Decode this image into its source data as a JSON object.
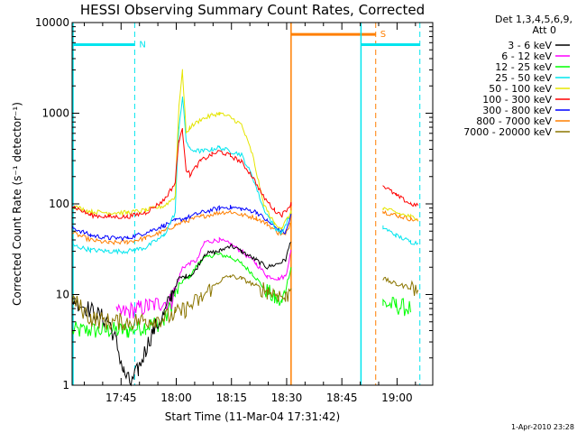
{
  "chart_data": {
    "type": "line",
    "title": "HESSI Observing Summary Count Rates, Corrected",
    "xlabel": "Start Time (11-Mar-04 17:31:42)",
    "ylabel": "Corrected Count Rate (s⁻¹ detector⁻¹)",
    "y_scale": "log",
    "ylim": [
      1,
      10000
    ],
    "y_ticks": [
      1,
      10,
      100,
      1000,
      10000
    ],
    "y_tick_labels": [
      "1",
      "10",
      "100",
      "1000",
      "10000"
    ],
    "x_unit": "minutes since 17:31:42",
    "xlim": [
      0,
      98
    ],
    "x_ticks": [
      13.3,
      28.3,
      43.3,
      58.3,
      73.3,
      88.3
    ],
    "x_tick_labels": [
      "17:45",
      "18:00",
      "18:15",
      "18:30",
      "18:45",
      "19:00"
    ],
    "legend_header": [
      "Det 1,3,4,5,6,9,",
      "Att 0"
    ],
    "legend_placement": "right, outside plot",
    "footer": "1-Apr-2010 23:28",
    "regions": [
      {
        "label": "N",
        "color": "#00e5ee",
        "y": 5700,
        "start": 0,
        "end": 17,
        "dashed_at": 17
      },
      {
        "label": "S",
        "color": "#ff7f00",
        "y": 7400,
        "start": 59.5,
        "end": 82.5,
        "dashed_at": 82.5
      },
      {
        "label": "",
        "color": "#00e5ee",
        "y": 5700,
        "start": 78.5,
        "end": 94.5,
        "dashed_at": 94.5
      }
    ],
    "gaps": [
      [
        59.5,
        84.5
      ]
    ],
    "series": [
      {
        "name": "3 - 6 keV",
        "color": "#000000",
        "points": [
          [
            0,
            9
          ],
          [
            10,
            5
          ],
          [
            12,
            3
          ],
          [
            14,
            1.4
          ],
          [
            16,
            1
          ],
          [
            18,
            1.5
          ],
          [
            20,
            2.5
          ],
          [
            22,
            4
          ],
          [
            25,
            6
          ],
          [
            27,
            10
          ],
          [
            29,
            15
          ],
          [
            31,
            16
          ],
          [
            33,
            17
          ],
          [
            36,
            28
          ],
          [
            40,
            30
          ],
          [
            43,
            35
          ],
          [
            46,
            30
          ],
          [
            50,
            24
          ],
          [
            53,
            20
          ],
          [
            56,
            22
          ],
          [
            58,
            24
          ],
          [
            59.5,
            40
          ]
        ]
      },
      {
        "name": "6 - 12 keV",
        "color": "#ff00ff",
        "points": [
          [
            12,
            6
          ],
          [
            15,
            6.5
          ],
          [
            18,
            7
          ],
          [
            21,
            7.5
          ],
          [
            24,
            8
          ],
          [
            27,
            8.5
          ],
          [
            30,
            20
          ],
          [
            32,
            22
          ],
          [
            34,
            24
          ],
          [
            36,
            38
          ],
          [
            40,
            40
          ],
          [
            43,
            36
          ],
          [
            46,
            30
          ],
          [
            50,
            22
          ],
          [
            53,
            16
          ],
          [
            56,
            15
          ],
          [
            58,
            16
          ],
          [
            59.5,
            30
          ]
        ]
      },
      {
        "name": "12 - 25 keV",
        "color": "#00ff00",
        "points": [
          [
            0,
            4
          ],
          [
            5,
            4
          ],
          [
            10,
            4
          ],
          [
            15,
            4
          ],
          [
            20,
            4.5
          ],
          [
            25,
            5
          ],
          [
            28,
            10
          ],
          [
            30,
            14
          ],
          [
            32,
            16
          ],
          [
            35,
            24
          ],
          [
            39,
            28
          ],
          [
            43,
            26
          ],
          [
            46,
            22
          ],
          [
            49,
            17
          ],
          [
            52,
            12
          ],
          [
            55,
            9
          ],
          [
            57,
            8
          ],
          [
            59.5,
            20
          ],
          [
            84.5,
            8
          ],
          [
            88,
            7.5
          ],
          [
            92,
            7
          ]
        ]
      },
      {
        "name": "25 - 50 keV",
        "color": "#00e5ee",
        "points": [
          [
            0,
            35
          ],
          [
            5,
            31
          ],
          [
            10,
            30
          ],
          [
            15,
            30
          ],
          [
            20,
            33
          ],
          [
            25,
            45
          ],
          [
            28,
            80
          ],
          [
            29,
            700
          ],
          [
            30,
            1500
          ],
          [
            31,
            500
          ],
          [
            32,
            400
          ],
          [
            35,
            380
          ],
          [
            38,
            400
          ],
          [
            40,
            420
          ],
          [
            43,
            380
          ],
          [
            46,
            350
          ],
          [
            49,
            200
          ],
          [
            52,
            90
          ],
          [
            55,
            55
          ],
          [
            57,
            48
          ],
          [
            59.5,
            80
          ],
          [
            84.5,
            55
          ],
          [
            88,
            45
          ],
          [
            92,
            38
          ],
          [
            94,
            37
          ]
        ]
      },
      {
        "name": "50 - 100 keV",
        "color": "#e5e500",
        "points": [
          [
            0,
            95
          ],
          [
            5,
            82
          ],
          [
            10,
            80
          ],
          [
            15,
            80
          ],
          [
            20,
            85
          ],
          [
            25,
            95
          ],
          [
            28,
            120
          ],
          [
            29,
            1200
          ],
          [
            30,
            2900
          ],
          [
            31,
            600
          ],
          [
            32,
            700
          ],
          [
            35,
            850
          ],
          [
            38,
            950
          ],
          [
            40,
            1000
          ],
          [
            43,
            900
          ],
          [
            46,
            750
          ],
          [
            49,
            350
          ],
          [
            52,
            100
          ],
          [
            55,
            60
          ],
          [
            57,
            55
          ],
          [
            59.5,
            80
          ],
          [
            84.5,
            90
          ],
          [
            88,
            80
          ],
          [
            92,
            72
          ],
          [
            94,
            70
          ]
        ]
      },
      {
        "name": "100 - 300 keV",
        "color": "#ff0000",
        "points": [
          [
            0,
            95
          ],
          [
            5,
            75
          ],
          [
            10,
            72
          ],
          [
            15,
            72
          ],
          [
            20,
            80
          ],
          [
            25,
            110
          ],
          [
            28,
            170
          ],
          [
            29,
            500
          ],
          [
            30,
            650
          ],
          [
            31,
            240
          ],
          [
            32,
            210
          ],
          [
            35,
            300
          ],
          [
            38,
            350
          ],
          [
            40,
            380
          ],
          [
            43,
            340
          ],
          [
            46,
            290
          ],
          [
            49,
            200
          ],
          [
            52,
            120
          ],
          [
            55,
            85
          ],
          [
            57,
            75
          ],
          [
            59.5,
            100
          ],
          [
            84.5,
            160
          ],
          [
            88,
            125
          ],
          [
            92,
            100
          ],
          [
            94,
            95
          ]
        ]
      },
      {
        "name": "300 - 800 keV",
        "color": "#0000ff",
        "points": [
          [
            0,
            55
          ],
          [
            5,
            45
          ],
          [
            10,
            42
          ],
          [
            15,
            42
          ],
          [
            20,
            48
          ],
          [
            25,
            58
          ],
          [
            28,
            65
          ],
          [
            31,
            70
          ],
          [
            35,
            80
          ],
          [
            40,
            90
          ],
          [
            43,
            92
          ],
          [
            46,
            88
          ],
          [
            50,
            82
          ],
          [
            53,
            65
          ],
          [
            56,
            52
          ],
          [
            58,
            48
          ],
          [
            59.5,
            75
          ]
        ]
      },
      {
        "name": "800 - 7000 keV",
        "color": "#ff7f00",
        "points": [
          [
            0,
            48
          ],
          [
            5,
            40
          ],
          [
            10,
            37
          ],
          [
            15,
            38
          ],
          [
            20,
            42
          ],
          [
            25,
            50
          ],
          [
            28,
            58
          ],
          [
            31,
            65
          ],
          [
            35,
            72
          ],
          [
            40,
            80
          ],
          [
            43,
            82
          ],
          [
            46,
            76
          ],
          [
            50,
            70
          ],
          [
            53,
            60
          ],
          [
            56,
            48
          ],
          [
            58,
            45
          ],
          [
            59.5,
            65
          ],
          [
            84.5,
            82
          ],
          [
            88,
            75
          ],
          [
            92,
            68
          ],
          [
            94,
            65
          ]
        ]
      },
      {
        "name": "7000 - 20000 keV",
        "color": "#8b7500",
        "points": [
          [
            0,
            9
          ],
          [
            5,
            5.5
          ],
          [
            10,
            5
          ],
          [
            15,
            5
          ],
          [
            20,
            5.2
          ],
          [
            25,
            5.5
          ],
          [
            28,
            6
          ],
          [
            31,
            7
          ],
          [
            35,
            9
          ],
          [
            38,
            12
          ],
          [
            41,
            15
          ],
          [
            43,
            16
          ],
          [
            46,
            15
          ],
          [
            50,
            12.5
          ],
          [
            53,
            11
          ],
          [
            56,
            10
          ],
          [
            58,
            9
          ],
          [
            59.5,
            12
          ],
          [
            84.5,
            15
          ],
          [
            88,
            13
          ],
          [
            92,
            12
          ],
          [
            94,
            11
          ]
        ]
      }
    ]
  }
}
